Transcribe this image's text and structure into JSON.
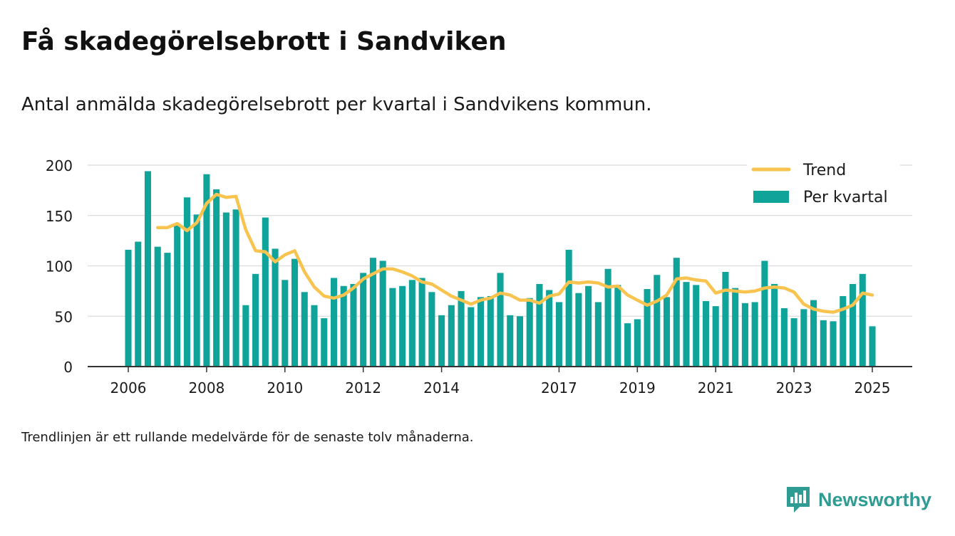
{
  "header": {
    "title": "Få skadegörelsebrott i Sandviken",
    "subtitle": "Antal anmälda skadegörelsebrott per kvartal i Sandvikens kommun."
  },
  "footnote": "Trendlinjen är ett rullande medelvärde för de senaste tolv månaderna.",
  "brand": {
    "name": "Newsworthy",
    "icon": "newsworthy-bar-chart-icon",
    "color": "#2f9c93"
  },
  "colors": {
    "bars": "#0fa39a",
    "trend": "#f8c44f",
    "grid": "#dcdcdc",
    "axis": "#333333"
  },
  "chart_data": {
    "type": "bar",
    "grid": true,
    "legend_position": "top-right",
    "ylim": [
      0,
      200
    ],
    "y_ticks": [
      "0",
      "50",
      "100",
      "150",
      "200"
    ],
    "x_ticks": [
      {
        "label": "2006",
        "x": 2006.0
      },
      {
        "label": "2008",
        "x": 2008.0
      },
      {
        "label": "2010",
        "x": 2010.0
      },
      {
        "label": "2012",
        "x": 2012.0
      },
      {
        "label": "2014",
        "x": 2014.0
      },
      {
        "label": "2017",
        "x": 2017.0
      },
      {
        "label": "2019",
        "x": 2019.0
      },
      {
        "label": "2021",
        "x": 2021.0
      },
      {
        "label": "2023",
        "x": 2023.0
      },
      {
        "label": "2025",
        "x": 2025.0
      }
    ],
    "x_start": 2006.0,
    "series": [
      {
        "name": "Per kvartal",
        "kind": "bar",
        "values": [
          116,
          124,
          194,
          119,
          113,
          140,
          168,
          151,
          191,
          176,
          153,
          156,
          61,
          92,
          148,
          117,
          86,
          107,
          74,
          61,
          48,
          88,
          80,
          82,
          93,
          108,
          105,
          78,
          80,
          86,
          88,
          74,
          51,
          61,
          75,
          59,
          69,
          70,
          93,
          51,
          50,
          68,
          82,
          76,
          64,
          116,
          73,
          80,
          64,
          97,
          81,
          43,
          47,
          77,
          91,
          69,
          108,
          84,
          81,
          65,
          60,
          94,
          78,
          63,
          64,
          105,
          82,
          58,
          48,
          57,
          66,
          46,
          45,
          70,
          82,
          92,
          40
        ]
      },
      {
        "name": "Trend",
        "kind": "line",
        "values": [
          null,
          null,
          null,
          138,
          138,
          142,
          135,
          143,
          162,
          171,
          168,
          169,
          136,
          115,
          114,
          104,
          111,
          115,
          94,
          79,
          70,
          68,
          71,
          78,
          87,
          92,
          97,
          97,
          94,
          90,
          84,
          82,
          76,
          70,
          66,
          62,
          66,
          68,
          73,
          71,
          66,
          66,
          63,
          70,
          72,
          84,
          83,
          84,
          83,
          79,
          80,
          71,
          66,
          61,
          65,
          71,
          87,
          88,
          86,
          85,
          73,
          76,
          75,
          74,
          75,
          78,
          79,
          78,
          74,
          62,
          57,
          55,
          54,
          57,
          61,
          73,
          71
        ]
      }
    ]
  }
}
